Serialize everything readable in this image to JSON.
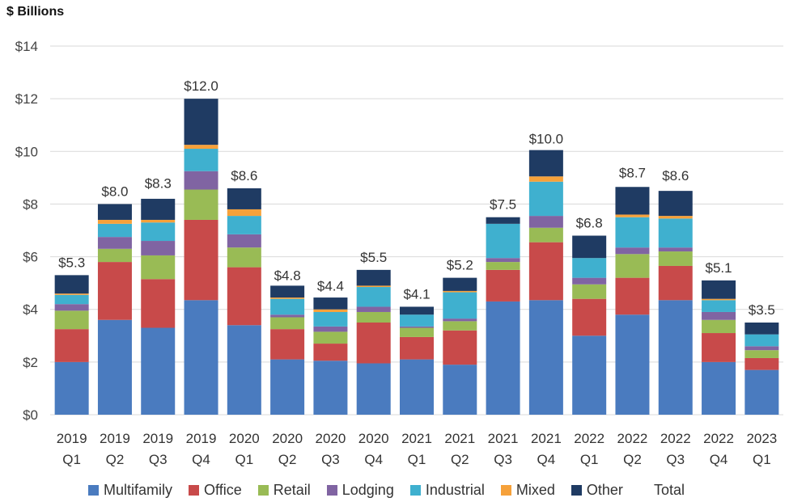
{
  "chart_data": {
    "type": "bar",
    "stacked": true,
    "ylabel": "$ Billions",
    "ylim": [
      0,
      14
    ],
    "yticks": [
      0,
      2,
      4,
      6,
      8,
      10,
      12,
      14
    ],
    "ytick_labels": [
      "$0",
      "$2",
      "$4",
      "$6",
      "$8",
      "$10",
      "$12",
      "$14"
    ],
    "categories": [
      [
        "2019",
        "Q1"
      ],
      [
        "2019",
        "Q2"
      ],
      [
        "2019",
        "Q3"
      ],
      [
        "2019",
        "Q4"
      ],
      [
        "2020",
        "Q1"
      ],
      [
        "2020",
        "Q2"
      ],
      [
        "2020",
        "Q3"
      ],
      [
        "2020",
        "Q4"
      ],
      [
        "2021",
        "Q1"
      ],
      [
        "2021",
        "Q2"
      ],
      [
        "2021",
        "Q3"
      ],
      [
        "2021",
        "Q4"
      ],
      [
        "2022",
        "Q1"
      ],
      [
        "2022",
        "Q2"
      ],
      [
        "2022",
        "Q3"
      ],
      [
        "2022",
        "Q4"
      ],
      [
        "2023",
        "Q1"
      ]
    ],
    "series": [
      {
        "name": "Multifamily",
        "color": "#4a7bbf",
        "values": [
          2.0,
          3.6,
          3.3,
          4.35,
          3.4,
          2.1,
          2.05,
          1.95,
          2.1,
          1.9,
          4.3,
          4.35,
          3.0,
          3.8,
          4.35,
          2.0,
          1.7
        ]
      },
      {
        "name": "Office",
        "color": "#c84a4a",
        "values": [
          1.25,
          2.2,
          1.85,
          3.05,
          2.2,
          1.15,
          0.65,
          1.55,
          0.85,
          1.3,
          1.2,
          2.2,
          1.4,
          1.4,
          1.3,
          1.1,
          0.45
        ]
      },
      {
        "name": "Retail",
        "color": "#99bb55",
        "values": [
          0.7,
          0.5,
          0.9,
          1.15,
          0.75,
          0.45,
          0.45,
          0.4,
          0.35,
          0.35,
          0.3,
          0.55,
          0.55,
          0.9,
          0.55,
          0.5,
          0.3
        ]
      },
      {
        "name": "Lodging",
        "color": "#8064a2",
        "values": [
          0.25,
          0.45,
          0.55,
          0.7,
          0.5,
          0.1,
          0.2,
          0.2,
          0.05,
          0.1,
          0.15,
          0.45,
          0.25,
          0.25,
          0.15,
          0.3,
          0.15
        ]
      },
      {
        "name": "Industrial",
        "color": "#3fb0cf",
        "values": [
          0.35,
          0.5,
          0.7,
          0.85,
          0.7,
          0.6,
          0.55,
          0.75,
          0.45,
          1.0,
          1.3,
          1.3,
          0.75,
          1.15,
          1.1,
          0.45,
          0.45
        ]
      },
      {
        "name": "Mixed",
        "color": "#f6a13a",
        "values": [
          0.05,
          0.15,
          0.1,
          0.15,
          0.25,
          0.05,
          0.1,
          0.05,
          0.0,
          0.05,
          0.0,
          0.2,
          0.0,
          0.1,
          0.1,
          0.05,
          0.0
        ]
      },
      {
        "name": "Other",
        "color": "#1f3b63",
        "values": [
          0.7,
          0.6,
          0.8,
          1.75,
          0.8,
          0.45,
          0.45,
          0.6,
          0.3,
          0.5,
          0.25,
          1.0,
          0.85,
          1.05,
          0.95,
          0.7,
          0.45
        ]
      }
    ],
    "totals": [
      5.3,
      8.0,
      8.3,
      12.0,
      8.6,
      4.8,
      4.4,
      5.5,
      4.1,
      5.2,
      7.5,
      10.0,
      6.8,
      8.7,
      8.6,
      5.1,
      3.5
    ],
    "total_labels": [
      "$5.3",
      "$8.0",
      "$8.3",
      "$12.0",
      "$8.6",
      "$4.8",
      "$4.4",
      "$5.5",
      "$4.1",
      "$5.2",
      "$7.5",
      "$10.0",
      "$6.8",
      "$8.7",
      "$8.6",
      "$5.1",
      "$3.5"
    ],
    "legend_extra": "Total",
    "grid": true,
    "legend_position": "bottom"
  }
}
